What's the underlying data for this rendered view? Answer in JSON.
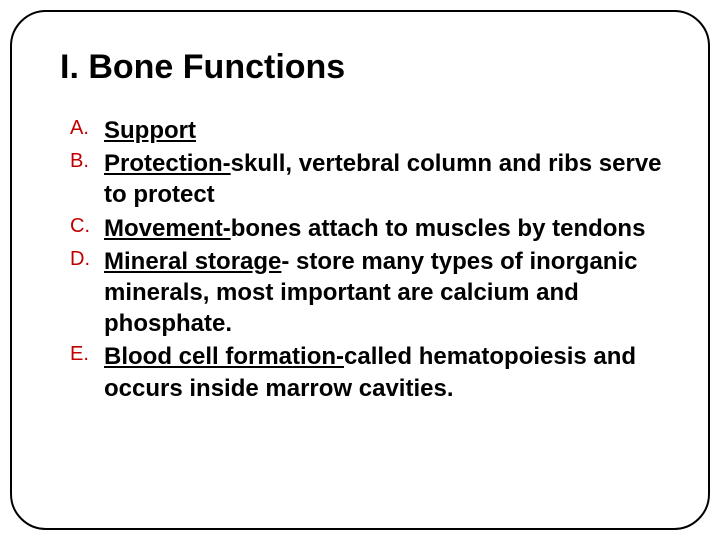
{
  "slide": {
    "title": "I. Bone Functions",
    "title_fontsize": 34,
    "title_color": "#000000",
    "body_fontsize": 24,
    "body_color": "#000000",
    "body_fontweight": "bold",
    "marker_color": "#c00000",
    "marker_fontsize": 20,
    "background_color": "#ffffff",
    "border_color": "#000000",
    "border_radius": 36,
    "items": [
      {
        "marker": "A.",
        "term": "Support",
        "desc": ""
      },
      {
        "marker": "B.",
        "term": "Protection-",
        "desc": "skull, vertebral column and ribs serve to protect"
      },
      {
        "marker": "C.",
        "term": "Movement-",
        "desc": "bones attach to muscles by tendons"
      },
      {
        "marker": "D.",
        "term": "Mineral storage",
        "desc": "- store many types of inorganic minerals, most important are calcium and phosphate."
      },
      {
        "marker": "E.",
        "term": "Blood cell formation-",
        "desc": "called hematopoiesis and occurs inside marrow cavities."
      }
    ]
  }
}
